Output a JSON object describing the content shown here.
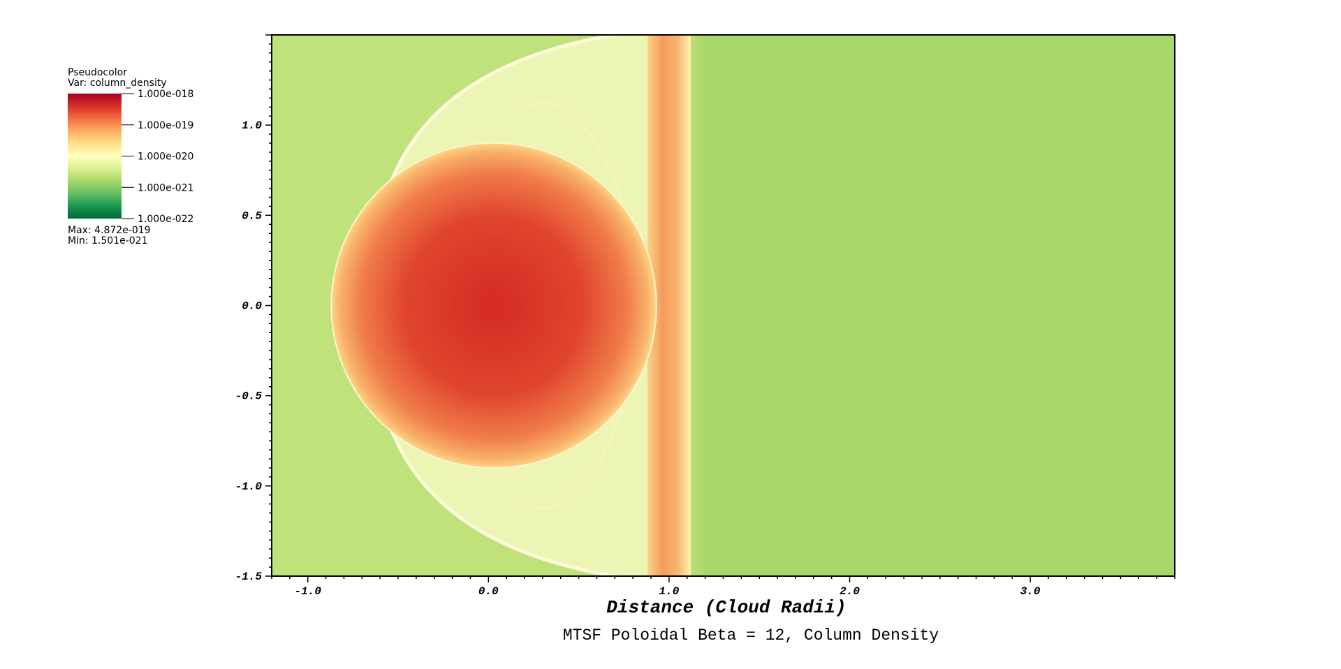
{
  "chart_data": {
    "type": "heatmap",
    "title": "MTSF Poloidal Beta = 12, Column Density",
    "xlabel": "Distance (Cloud Radii)",
    "ylabel": "",
    "xlim": [
      -1.2,
      3.8
    ],
    "ylim": [
      -1.5,
      1.5
    ],
    "x_ticks": [
      {
        "value": -1.0,
        "label": "-1.0"
      },
      {
        "value": 0.0,
        "label": "0.0"
      },
      {
        "value": 1.0,
        "label": "1.0"
      },
      {
        "value": 2.0,
        "label": "2.0"
      },
      {
        "value": 3.0,
        "label": "3.0"
      }
    ],
    "y_ticks": [
      {
        "value": 1.0,
        "label": "1.0"
      },
      {
        "value": 0.5,
        "label": "0.5"
      },
      {
        "value": 0.0,
        "label": "0.0"
      },
      {
        "value": -0.5,
        "label": "-0.5"
      },
      {
        "value": -1.0,
        "label": "-1.0"
      },
      {
        "value": -1.5,
        "label": "-1.5"
      }
    ],
    "field": {
      "cloud_center": [
        0.03,
        0.0
      ],
      "cloud_radius": 0.9,
      "bow_vertex_x": -0.64,
      "bow_halfwidth_at_x1": 1.5,
      "stripe_x": [
        0.88,
        1.12
      ],
      "background_left": "#bfe27a",
      "background_right": "#a8d86a"
    },
    "legend": {
      "title": "Pseudocolor",
      "var_label": "Var: column_density",
      "ticks": [
        "1.000e-018",
        "1.000e-019",
        "1.000e-020",
        "1.000e-021",
        "1.000e-022"
      ],
      "colors": [
        "#a50026",
        "#d73027",
        "#f46d43",
        "#fdae61",
        "#fee08b",
        "#ffffbf",
        "#d9ef8b",
        "#a6d96a",
        "#66bd63",
        "#1a9850",
        "#006837"
      ],
      "max_label": "Max:  4.872e-019",
      "min_label": "Min:  1.501e-021"
    }
  }
}
